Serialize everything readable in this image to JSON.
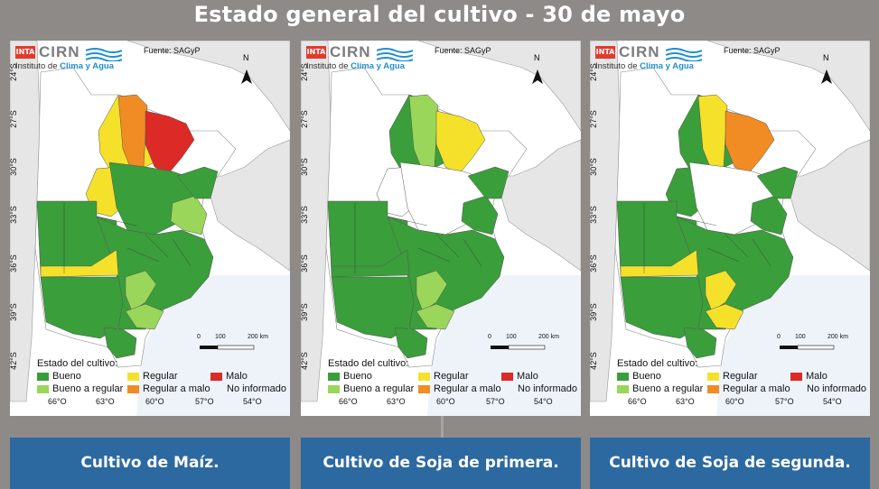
{
  "title": "Estado general del cultivo - 30 de mayo",
  "map": {
    "logo": {
      "inta": "INTA",
      "cirn": "CIRN",
      "institute_prefix": "Instituto de ",
      "institute_name": "Clima y Agua"
    },
    "source": "Fuente: SAGyP",
    "north": "N",
    "latitudes": [
      "24°S",
      "27°S",
      "30°S",
      "33°S",
      "36°S",
      "39°S",
      "42°S"
    ],
    "longitudes": [
      "66°O",
      "63°O",
      "60°O",
      "57°O",
      "54°O"
    ],
    "scale": {
      "labels": [
        "0",
        "100",
        "200 km"
      ]
    },
    "legend": {
      "title": "Estado del cultivo:",
      "items": [
        {
          "label": "Bueno",
          "color": "#3a9e3a"
        },
        {
          "label": "Regular",
          "color": "#f5e12a"
        },
        {
          "label": "Malo",
          "color": "#dc2a26"
        },
        {
          "label": "Bueno a regular",
          "color": "#9ad65a"
        },
        {
          "label": "Regular a malo",
          "color": "#f08c23"
        },
        {
          "label": "No informado",
          "color": "#ffffff"
        }
      ]
    }
  },
  "panels": [
    {
      "caption": "Cultivo de Maíz.",
      "regions": {
        "north_a": "regular",
        "north_b": "regular_malo",
        "north_c": "malo",
        "mid_w": "regular",
        "mid_c": "bueno",
        "mid_e": "bueno_regular",
        "ne_strip": "bueno",
        "west": "regular",
        "south": "bueno",
        "south_c": "bueno_regular"
      }
    },
    {
      "caption": "Cultivo de Soja de primera.",
      "regions": {
        "north_a": "bueno",
        "north_b": "bueno_regular",
        "north_c": "regular",
        "mid_w": "none",
        "mid_c": "none",
        "mid_e": "bueno",
        "ne_strip": "bueno",
        "west": "bueno",
        "south": "bueno",
        "south_c": "bueno_regular"
      }
    },
    {
      "caption": "Cultivo de Soja de segunda.",
      "regions": {
        "north_a": "bueno",
        "north_b": "regular",
        "north_c": "regular_malo",
        "mid_w": "bueno",
        "mid_c": "none",
        "mid_e": "bueno",
        "ne_strip": "bueno",
        "west": "regular",
        "south": "bueno",
        "south_c": "regular"
      }
    }
  ]
}
